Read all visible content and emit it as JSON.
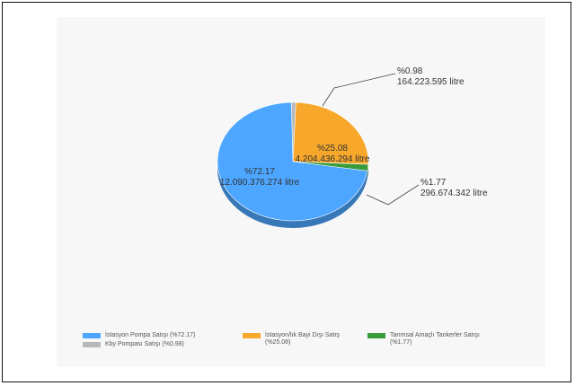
{
  "chart_data": {
    "type": "pie",
    "title": "",
    "slices": [
      {
        "key": "istasyon",
        "legend": "İstasyon Pompa Satışı (%72.17)",
        "percent_label": "%72.17",
        "value_label": "12.090.376.274 litre",
        "percent": 72.17,
        "color": "#4da6ff"
      },
      {
        "key": "kby",
        "legend": "Kby Pompası Satışı (%0.98)",
        "percent_label": "%0.98",
        "value_label": "164.223.595 litre",
        "percent": 0.98,
        "color": "#b8b8b8"
      },
      {
        "key": "dis",
        "legend": "İstasyon/lık Bayi Dışı Satış\n(%25.08)",
        "percent_label": "%25.08",
        "value_label": "4.204.436.294 litre",
        "percent": 25.08,
        "color": "#f7a72a"
      },
      {
        "key": "tarimsal",
        "legend": "Tarımsal Amaçlı Tankerler Satışı\n(%1.77)",
        "percent_label": "%1.77",
        "value_label": "296.674.342 litre",
        "percent": 1.77,
        "color": "#3a9b3a"
      }
    ],
    "legend_position": "bottom"
  }
}
